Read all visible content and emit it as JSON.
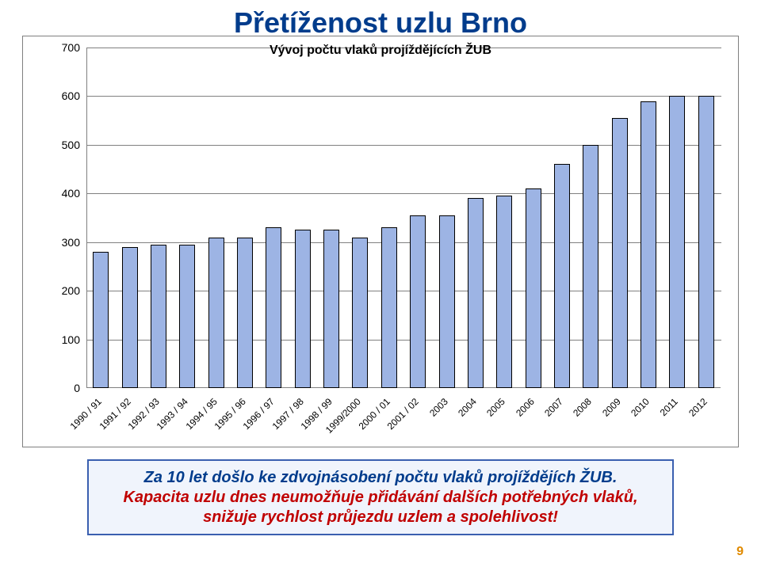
{
  "title": "Přetíženost uzlu Brno",
  "subtitle": "Vývoj počtu vlaků projíždějících ŽUB",
  "chart": {
    "type": "bar",
    "categories": [
      "1990 / 91",
      "1991 / 92",
      "1992 / 93",
      "1993 / 94",
      "1994 / 95",
      "1995 / 96",
      "1996 / 97",
      "1997 / 98",
      "1998 / 99",
      "1999/2000",
      "2000 / 01",
      "2001 / 02",
      "2003",
      "2004",
      "2005",
      "2006",
      "2007",
      "2008",
      "2009",
      "2010",
      "2011",
      "2012"
    ],
    "values": [
      280,
      290,
      295,
      295,
      310,
      310,
      330,
      325,
      325,
      310,
      330,
      355,
      355,
      390,
      395,
      410,
      460,
      500,
      555,
      590,
      600,
      600
    ],
    "ylim": [
      0,
      700
    ],
    "ytick_step": 100,
    "bar_fill": "#9db4e4",
    "bar_border": "#000000",
    "grid_color": "#808080",
    "axis_color": "#808080",
    "label_fontsize": 12,
    "ylabel_fontsize": 14,
    "bar_width_ratio": 0.55,
    "background_color": "#ffffff"
  },
  "caption": {
    "line1": "Za 10 let došlo ke zdvojnásobení počtu vlaků projíždějích ŽUB.",
    "line2a": "Kapacita uzlu dnes neumožňuje přidávání dalších potřebných vlaků,",
    "line2b": "snižuje rychlost průjezdu uzlem a spolehlivost!",
    "line1_color": "#003c8c",
    "line2_color": "#c00000",
    "box_border": "#3a5fb0",
    "box_fill": "#f0f4fc"
  },
  "page_number": "9",
  "bg_image": {
    "sky": "#a8c8e0",
    "ground1": "#7a8a5a",
    "ground2": "#9a8a6a",
    "urban": "#c4b8a8",
    "track": "#6a6a5a"
  }
}
